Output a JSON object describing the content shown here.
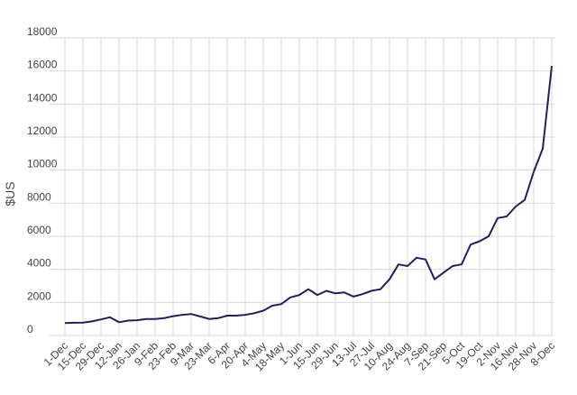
{
  "chart_data": {
    "type": "line",
    "y_label": "$US",
    "categories": [
      "1-Dec",
      null,
      "15-Dec",
      null,
      "29-Dec",
      null,
      "12-Jan",
      null,
      "26-Jan",
      null,
      "9-Feb",
      null,
      "23-Feb",
      null,
      "9-Mar",
      null,
      "23-Mar",
      null,
      "6-Apr",
      null,
      "20-Apr",
      null,
      "4-May",
      null,
      "18-May",
      null,
      "1-Jun",
      null,
      "15-Jun",
      null,
      "29-Jun",
      null,
      "13-Jul",
      null,
      "27-Jul",
      null,
      "10-Aug",
      null,
      "24-Aug",
      null,
      "7-Sep",
      null,
      "21-Sep",
      null,
      "5-Oct",
      null,
      "19-Oct",
      null,
      "2-Nov",
      null,
      "16-Nov",
      null,
      "28-Nov",
      null,
      "8-Dec"
    ],
    "series": [
      {
        "name": "$US",
        "color": "#2b1a5e",
        "values": [
          750,
          770,
          780,
          850,
          970,
          1100,
          800,
          900,
          920,
          1000,
          1000,
          1050,
          1170,
          1250,
          1300,
          1150,
          1000,
          1050,
          1200,
          1200,
          1250,
          1350,
          1500,
          1800,
          1900,
          2300,
          2450,
          2800,
          2450,
          2700,
          2550,
          2600,
          2350,
          2500,
          2700,
          2800,
          3400,
          4300,
          4200,
          4700,
          4600,
          3400,
          3800,
          4200,
          4300,
          5500,
          5700,
          6000,
          7100,
          7200,
          7800,
          8200,
          9900,
          11300,
          16300
        ]
      }
    ],
    "ylim": [
      0,
      18000
    ],
    "yticks": [
      0,
      2000,
      4000,
      6000,
      8000,
      10000,
      12000,
      14000,
      16000,
      18000
    ],
    "grid": true
  }
}
